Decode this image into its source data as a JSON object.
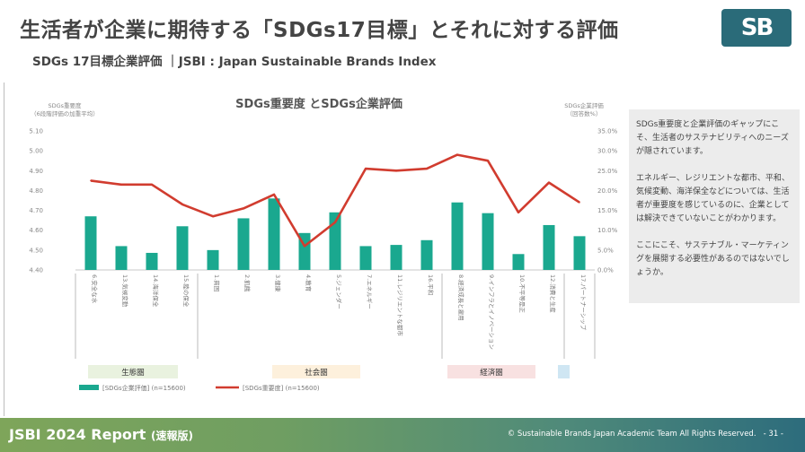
{
  "header": {
    "title": "生活者が企業に期待する「SDGs17目標」とそれに対する評価",
    "subtitle": "SDGs 17目標企業評価 ｜JSBI : Japan Sustainable Brands Index",
    "logo_text": "SB"
  },
  "note": {
    "paragraphs": [
      "SDGs重要度と企業評価のギャップにこそ、生活者のサステナビリティへのニーズが隠されています。",
      "エネルギー、レジリエントな都市、平和、気候変動、海洋保全などについては、生活者が重要度を感じているのに、企業としては解決できていないことがわかります。",
      "ここにこそ、サステナブル・マーケティングを展開する必要性があるのではないでしょうか。"
    ]
  },
  "footer": {
    "report": "JSBI 2024 Report",
    "report_suffix": "(速報版)",
    "copyright": "© Sustainable Brands Japan Academic Team  All Rights Reserved.",
    "page": "- 31 -"
  },
  "chart_data": {
    "type": "bar",
    "title": "SDGs重要度 とSDGs企業評価",
    "ylabel_left": "SDGs重要度\n（6段階評価の加重平均）",
    "ylabel_right": "SDGs企業評価\n（回答数%）",
    "ylim_left": [
      4.4,
      5.1
    ],
    "ylim_right": [
      0,
      35
    ],
    "yticks_left": [
      "5.10",
      "5.00",
      "4.90",
      "4.80",
      "4.70",
      "4.60",
      "4.50",
      "4.40"
    ],
    "yticks_right": [
      "35.0%",
      "30.0%",
      "25.0%",
      "20.0%",
      "15.0%",
      "10.0%",
      "5.0%",
      "0.0%"
    ],
    "categories": [
      "6.安全な水",
      "13.気候変動",
      "14.海洋保全",
      "15.陸の保全",
      "1.貧困",
      "2.飢餓",
      "3.健康",
      "4.教育",
      "5.ジェンダー",
      "7.エネルギー",
      "11.レジリエントな都市",
      "16.平和",
      "8.経済成長と雇用",
      "9.インフラとイノベーション",
      "10.不平等是正",
      "12.消費と生産",
      "17.パートナーシップ"
    ],
    "series": [
      {
        "name": "[SDGs企業評価] (n=15600)",
        "type": "bar",
        "axis": "right",
        "color": "#1aa88f",
        "values": [
          13.5,
          6.0,
          4.3,
          11.0,
          5.0,
          13.0,
          18.0,
          9.3,
          14.5,
          6.0,
          6.3,
          7.5,
          17.0,
          14.3,
          4.0,
          11.3,
          8.5
        ]
      },
      {
        "name": "[SDGs重要度] (n=15600)",
        "type": "line",
        "axis": "left",
        "color": "#d13c2f",
        "values": [
          4.85,
          4.83,
          4.83,
          4.73,
          4.67,
          4.71,
          4.78,
          4.52,
          4.64,
          4.91,
          4.9,
          4.91,
          4.98,
          4.95,
          4.69,
          4.84,
          4.74
        ]
      }
    ],
    "groups": [
      {
        "label": "生態圏",
        "color": "#e9f2df"
      },
      {
        "label": "社会圏",
        "color": "#fdf0dc"
      },
      {
        "label": "経済圏",
        "color": "#f8e1e1"
      },
      {
        "label": "",
        "color": "#cfe6f3"
      }
    ]
  }
}
